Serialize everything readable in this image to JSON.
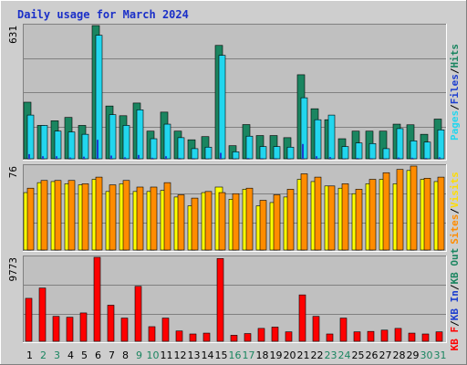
{
  "chart_data": [
    {
      "type": "bar",
      "title": "Daily usage for March 2024",
      "panel": "top",
      "ymax_label": "631",
      "categories": [
        "1",
        "2",
        "3",
        "4",
        "5",
        "6",
        "7",
        "8",
        "9",
        "10",
        "11",
        "12",
        "13",
        "14",
        "15",
        "16",
        "17",
        "18",
        "19",
        "20",
        "21",
        "22",
        "23",
        "24",
        "25",
        "26",
        "27",
        "28",
        "29",
        "30",
        "31"
      ],
      "weekend_days": [
        "2",
        "3",
        "9",
        "10",
        "16",
        "17",
        "23",
        "24",
        "30",
        "31"
      ],
      "ylim": [
        0,
        631
      ],
      "legend": [
        "Pages",
        "/",
        "Files",
        "/",
        "Hits"
      ],
      "series": [
        {
          "name": "Hits",
          "color": "#1a8560",
          "values": [
            268,
            158,
            180,
            196,
            158,
            631,
            250,
            204,
            264,
            131,
            221,
            131,
            90,
            105,
            537,
            62,
            162,
            110,
            110,
            100,
            398,
            237,
            185,
            95,
            131,
            131,
            131,
            164,
            161,
            116,
            188
          ]
        },
        {
          "name": "Files",
          "color": "#22d6ee",
          "values": [
            207,
            158,
            131,
            127,
            116,
            585,
            209,
            158,
            232,
            95,
            164,
            100,
            48,
            55,
            490,
            33,
            107,
            58,
            58,
            55,
            289,
            185,
            207,
            58,
            75,
            72,
            48,
            143,
            85,
            79,
            137
          ]
        },
        {
          "name": "Pages",
          "color": "#1c3ecf",
          "values": [
            22,
            12,
            12,
            6,
            10,
            90,
            15,
            7,
            18,
            5,
            12,
            4,
            3,
            2,
            28,
            2,
            4,
            3,
            3,
            2,
            70,
            12,
            8,
            2,
            4,
            3,
            2,
            6,
            5,
            4,
            7
          ]
        }
      ]
    },
    {
      "type": "bar",
      "panel": "middle",
      "ymax_label": "76",
      "categories": [
        "1",
        "2",
        "3",
        "4",
        "5",
        "6",
        "7",
        "8",
        "9",
        "10",
        "11",
        "12",
        "13",
        "14",
        "15",
        "16",
        "17",
        "18",
        "19",
        "20",
        "21",
        "22",
        "23",
        "24",
        "25",
        "26",
        "27",
        "28",
        "29",
        "30",
        "31"
      ],
      "ylim": [
        0,
        76
      ],
      "legend": [
        "Sites",
        "/",
        "Visits"
      ],
      "series": [
        {
          "name": "Visits",
          "color": "#ffff00",
          "values": [
            52,
            61,
            62,
            60,
            59,
            64,
            53,
            60,
            53,
            53,
            54,
            48,
            40,
            52,
            57,
            46,
            55,
            40,
            43,
            48,
            64,
            62,
            58,
            56,
            51,
            60,
            64,
            60,
            72,
            64,
            62
          ]
        },
        {
          "name": "Sites",
          "color": "#ff8c00",
          "values": [
            56,
            63,
            63,
            63,
            60,
            66,
            59,
            63,
            57,
            57,
            61,
            50,
            47,
            53,
            52,
            51,
            56,
            45,
            50,
            55,
            69,
            66,
            58,
            60,
            55,
            64,
            70,
            73,
            76,
            65,
            66
          ]
        }
      ]
    },
    {
      "type": "bar",
      "panel": "bottom",
      "ymax_label": "9773",
      "categories": [
        "1",
        "2",
        "3",
        "4",
        "5",
        "6",
        "7",
        "8",
        "9",
        "10",
        "11",
        "12",
        "13",
        "14",
        "15",
        "16",
        "17",
        "18",
        "19",
        "20",
        "21",
        "22",
        "23",
        "24",
        "25",
        "26",
        "27",
        "28",
        "29",
        "30",
        "31"
      ],
      "ylim": [
        0,
        9773
      ],
      "legend": [
        "KB F",
        "/",
        "KB In",
        "/",
        "KB Out"
      ],
      "series": [
        {
          "name": "KB F",
          "color": "#ff0000",
          "values": [
            5000,
            6200,
            2900,
            2800,
            3300,
            9773,
            4200,
            2700,
            6400,
            1700,
            2700,
            1200,
            850,
            950,
            9633,
            700,
            900,
            1500,
            1650,
            1100,
            5400,
            2900,
            850,
            2700,
            1100,
            1150,
            1300,
            1500,
            950,
            850,
            1100
          ]
        }
      ]
    }
  ],
  "colors": {
    "frame_bg": "#cecece",
    "plot_bg": "#c0c0c0",
    "title": "#1a2fc8",
    "weekend_day": "#1a8560",
    "weekday_day": "#000000",
    "legend_sep": "#000000",
    "legend_kbout": "#1a8560",
    "legend_kbin": "#1c3ecf"
  }
}
